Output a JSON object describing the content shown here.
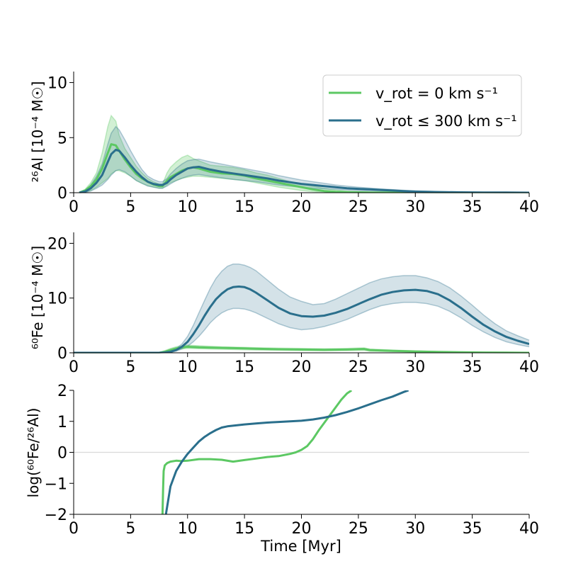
{
  "colors": {
    "nonrot": "#5cc863",
    "rot": "#2a6f8c",
    "nonrot_band": "#5cc863",
    "rot_band": "#2a6f8c",
    "zero_line": "#d9d9d9"
  },
  "legend": {
    "nonrot_label": "v_rot = 0 km s⁻¹",
    "rot_label": "v_rot ≤ 300 km s⁻¹"
  },
  "chart_data": [
    {
      "type": "line",
      "ylabel": "²⁶Al [10⁻⁴ M☉]",
      "xlabel": "",
      "xlim": [
        0,
        40
      ],
      "ylim": [
        0,
        11
      ],
      "xticks": [
        0,
        5,
        10,
        15,
        20,
        25,
        30,
        35,
        40
      ],
      "yticks": [
        0,
        5,
        10
      ],
      "legend": "top-right",
      "series": [
        {
          "name": "v_rot = 0 km s⁻¹",
          "x": [
            0.5,
            1,
            1.5,
            2,
            2.5,
            3,
            3.3,
            3.7,
            4,
            4.5,
            5,
            5.5,
            6,
            6.5,
            7,
            7.5,
            7.8,
            8.2,
            8.5,
            9,
            9.5,
            10,
            10.5,
            11,
            12,
            13,
            14,
            15,
            16,
            17,
            18,
            19,
            20,
            21,
            22,
            23,
            24,
            25,
            26,
            27,
            28,
            29,
            30,
            32,
            34,
            36,
            38,
            40
          ],
          "y": [
            0,
            0.2,
            0.6,
            1.2,
            2.2,
            3.6,
            4.4,
            4.3,
            3.8,
            3.0,
            2.3,
            1.7,
            1.3,
            1.0,
            0.75,
            0.6,
            0.6,
            1.1,
            1.4,
            1.7,
            2.0,
            2.2,
            2.3,
            2.2,
            1.9,
            1.75,
            1.7,
            1.55,
            1.3,
            1.1,
            0.9,
            0.7,
            0.5,
            0.3,
            0.15,
            0.08,
            0.05,
            0.03,
            0.02,
            0.01,
            0.01,
            0,
            0,
            0,
            0,
            0,
            0,
            0
          ],
          "upper": [
            0.05,
            0.3,
            0.9,
            1.8,
            3.6,
            6.0,
            7.0,
            6.5,
            5.2,
            4.0,
            3.2,
            2.4,
            1.8,
            1.3,
            1.0,
            0.8,
            0.8,
            1.8,
            2.3,
            2.8,
            3.2,
            3.4,
            3.1,
            2.9,
            2.5,
            2.4,
            2.3,
            2.1,
            1.8,
            1.6,
            1.3,
            1.0,
            0.8,
            0.6,
            0.4,
            0.25,
            0.15,
            0.1,
            0.07,
            0.05,
            0.03,
            0.02,
            0.01,
            0,
            0,
            0,
            0,
            0
          ],
          "lower": [
            0,
            0.05,
            0.2,
            0.5,
            0.9,
            1.3,
            1.7,
            2.0,
            2.0,
            1.8,
            1.5,
            1.1,
            0.85,
            0.65,
            0.5,
            0.4,
            0.4,
            0.7,
            0.9,
            1.1,
            1.3,
            1.4,
            1.5,
            1.5,
            1.4,
            1.3,
            1.2,
            1.1,
            0.9,
            0.7,
            0.5,
            0.35,
            0.2,
            0.1,
            0.04,
            0.02,
            0.01,
            0,
            0,
            0,
            0,
            0,
            0,
            0,
            0,
            0,
            0,
            0
          ]
        },
        {
          "name": "v_rot ≤ 300 km s⁻¹",
          "x": [
            0.5,
            1,
            1.5,
            2,
            2.5,
            3,
            3.3,
            3.7,
            4,
            4.5,
            5,
            5.5,
            6,
            6.5,
            7,
            7.5,
            7.8,
            8.2,
            8.5,
            9,
            9.5,
            10,
            10.5,
            11,
            12,
            13,
            14,
            15,
            16,
            17,
            18,
            19,
            20,
            21,
            22,
            23,
            24,
            25,
            26,
            27,
            28,
            29,
            30,
            32,
            34,
            36,
            38,
            40
          ],
          "y": [
            0,
            0.1,
            0.4,
            0.9,
            1.6,
            2.8,
            3.5,
            3.9,
            3.8,
            3.2,
            2.5,
            1.9,
            1.4,
            1.0,
            0.8,
            0.7,
            0.7,
            0.9,
            1.2,
            1.6,
            1.9,
            2.2,
            2.3,
            2.35,
            2.1,
            1.9,
            1.75,
            1.6,
            1.45,
            1.3,
            1.1,
            0.95,
            0.8,
            0.7,
            0.6,
            0.5,
            0.4,
            0.35,
            0.3,
            0.25,
            0.2,
            0.15,
            0.1,
            0.06,
            0.03,
            0.02,
            0.01,
            0
          ],
          "upper": [
            0.05,
            0.2,
            0.7,
            1.5,
            2.6,
            4.4,
            5.4,
            6.0,
            5.7,
            4.8,
            3.8,
            2.9,
            2.1,
            1.5,
            1.2,
            1.0,
            1.0,
            1.3,
            1.7,
            2.2,
            2.6,
            2.9,
            3.0,
            3.05,
            2.8,
            2.6,
            2.4,
            2.2,
            2.0,
            1.8,
            1.55,
            1.35,
            1.15,
            1.0,
            0.85,
            0.7,
            0.6,
            0.5,
            0.42,
            0.35,
            0.28,
            0.22,
            0.16,
            0.1,
            0.06,
            0.04,
            0.02,
            0.01
          ],
          "lower": [
            0,
            0.03,
            0.15,
            0.4,
            0.7,
            1.2,
            1.6,
            2.0,
            2.1,
            1.9,
            1.5,
            1.1,
            0.85,
            0.6,
            0.5,
            0.4,
            0.4,
            0.6,
            0.8,
            1.1,
            1.3,
            1.5,
            1.6,
            1.65,
            1.5,
            1.35,
            1.2,
            1.1,
            1.0,
            0.85,
            0.7,
            0.6,
            0.5,
            0.4,
            0.35,
            0.3,
            0.25,
            0.2,
            0.17,
            0.14,
            0.1,
            0.08,
            0.05,
            0.03,
            0.02,
            0.01,
            0,
            0
          ]
        }
      ]
    },
    {
      "type": "line",
      "ylabel": "⁶⁰Fe [10⁻⁴ M☉]",
      "xlabel": "",
      "xlim": [
        0,
        40
      ],
      "ylim": [
        0,
        22
      ],
      "xticks": [
        0,
        5,
        10,
        15,
        20,
        25,
        30,
        35,
        40
      ],
      "yticks": [
        0,
        10,
        20
      ],
      "series": [
        {
          "name": "v_rot = 0 km s⁻¹",
          "x": [
            0,
            7.5,
            8,
            8.5,
            9,
            9.5,
            10,
            11,
            12,
            13,
            14,
            15,
            16,
            18,
            20,
            22,
            24,
            25.5,
            26,
            28,
            30,
            32,
            34,
            36,
            38,
            40
          ],
          "y": [
            0,
            0,
            0.2,
            0.5,
            0.8,
            1.0,
            1.1,
            1.0,
            0.95,
            0.9,
            0.85,
            0.8,
            0.75,
            0.65,
            0.6,
            0.55,
            0.6,
            0.7,
            0.5,
            0.35,
            0.25,
            0.15,
            0.1,
            0.05,
            0.02,
            0
          ],
          "upper": [
            0,
            0,
            0.4,
            0.8,
            1.1,
            1.3,
            1.4,
            1.3,
            1.2,
            1.1,
            1.05,
            1.0,
            0.95,
            0.85,
            0.8,
            0.75,
            0.8,
            0.9,
            0.7,
            0.5,
            0.35,
            0.22,
            0.14,
            0.08,
            0.03,
            0.01
          ],
          "lower": [
            0,
            0,
            0.05,
            0.2,
            0.5,
            0.7,
            0.8,
            0.75,
            0.7,
            0.65,
            0.6,
            0.55,
            0.5,
            0.45,
            0.4,
            0.35,
            0.4,
            0.45,
            0.3,
            0.2,
            0.15,
            0.08,
            0.05,
            0.02,
            0,
            0
          ]
        },
        {
          "name": "v_rot ≤ 300 km s⁻¹",
          "x": [
            0,
            7.5,
            8,
            8.5,
            9,
            9.5,
            10,
            10.5,
            11,
            11.5,
            12,
            12.5,
            13,
            13.5,
            14,
            14.5,
            15,
            15.5,
            16,
            17,
            18,
            19,
            20,
            21,
            22,
            23,
            24,
            25,
            26,
            27,
            28,
            29,
            30,
            31,
            32,
            33,
            34,
            35,
            36,
            37,
            38,
            39,
            40
          ],
          "y": [
            0,
            0,
            0.05,
            0.2,
            0.5,
            1.1,
            2.0,
            3.4,
            5.0,
            6.8,
            8.4,
            9.8,
            10.8,
            11.6,
            12.0,
            12.1,
            12.0,
            11.6,
            11.0,
            9.6,
            8.2,
            7.2,
            6.7,
            6.6,
            6.8,
            7.3,
            8.0,
            8.9,
            9.8,
            10.6,
            11.1,
            11.4,
            11.5,
            11.3,
            10.7,
            9.6,
            8.2,
            6.6,
            5.1,
            3.9,
            2.9,
            2.2,
            1.6
          ],
          "upper": [
            0,
            0,
            0.08,
            0.3,
            0.8,
            1.6,
            3.0,
            5.0,
            7.3,
            9.6,
            11.8,
            13.6,
            14.9,
            15.8,
            16.2,
            16.2,
            16.0,
            15.6,
            15.0,
            13.3,
            11.6,
            10.2,
            9.4,
            8.8,
            9.0,
            9.8,
            10.8,
            11.8,
            12.8,
            13.5,
            13.9,
            14.1,
            14.1,
            13.7,
            13.0,
            11.9,
            10.4,
            8.7,
            6.9,
            5.3,
            4.0,
            3.1,
            2.3
          ],
          "lower": [
            0,
            0,
            0.02,
            0.1,
            0.3,
            0.7,
            1.2,
            2.0,
            3.0,
            4.2,
            5.5,
            6.5,
            7.3,
            7.8,
            8.1,
            8.1,
            8.0,
            7.7,
            7.3,
            6.3,
            5.3,
            4.6,
            4.2,
            4.4,
            4.8,
            5.4,
            6.1,
            7.0,
            7.9,
            8.6,
            9.0,
            9.2,
            9.2,
            9.0,
            8.5,
            7.6,
            6.4,
            5.0,
            3.8,
            2.8,
            2.0,
            1.5,
            1.1
          ]
        }
      ]
    },
    {
      "type": "line",
      "ylabel": "log(⁶⁰Fe/²⁶Al)",
      "xlabel": "Time [Myr]",
      "xlim": [
        0,
        40
      ],
      "ylim": [
        -2,
        2
      ],
      "xticks": [
        0,
        5,
        10,
        15,
        20,
        25,
        30,
        35,
        40
      ],
      "yticks": [
        -2,
        -1,
        0,
        1,
        2
      ],
      "reference_line": 0,
      "series": [
        {
          "name": "v_rot = 0 km s⁻¹",
          "x": [
            7.8,
            7.85,
            7.9,
            8.0,
            8.2,
            8.5,
            9.0,
            9.5,
            10,
            11,
            12,
            13,
            14,
            15,
            16,
            17,
            18,
            19,
            19.5,
            20,
            20.5,
            21,
            21.5,
            22,
            22.5,
            23,
            23.5,
            24,
            24.4
          ],
          "y": [
            -2.0,
            -1.2,
            -0.6,
            -0.42,
            -0.35,
            -0.3,
            -0.27,
            -0.28,
            -0.27,
            -0.22,
            -0.22,
            -0.24,
            -0.3,
            -0.25,
            -0.2,
            -0.15,
            -0.12,
            -0.05,
            0.0,
            0.08,
            0.2,
            0.42,
            0.7,
            0.95,
            1.2,
            1.45,
            1.7,
            1.9,
            2.0
          ]
        },
        {
          "name": "v_rot ≤ 300 km s⁻¹",
          "x": [
            8.1,
            8.5,
            9,
            9.5,
            10,
            10.5,
            11,
            11.5,
            12,
            12.5,
            13,
            13.5,
            14,
            15,
            16,
            17,
            18,
            19,
            20,
            21,
            22,
            23,
            24,
            25,
            26,
            27,
            28,
            29,
            29.4
          ],
          "y": [
            -2.0,
            -1.1,
            -0.6,
            -0.3,
            -0.05,
            0.15,
            0.35,
            0.5,
            0.62,
            0.72,
            0.8,
            0.84,
            0.86,
            0.9,
            0.93,
            0.96,
            0.98,
            1.0,
            1.02,
            1.06,
            1.12,
            1.2,
            1.3,
            1.42,
            1.55,
            1.68,
            1.8,
            1.95,
            2.0
          ]
        }
      ]
    }
  ]
}
